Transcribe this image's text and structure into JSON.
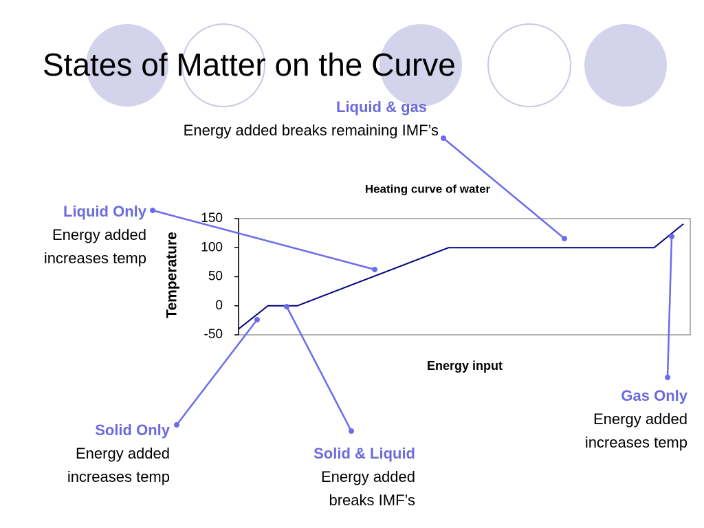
{
  "slide_title": "States of Matter on the Curve",
  "chart_data": {
    "type": "line",
    "title": "Heating curve of water",
    "x_label": "Energy input",
    "y_label": "Temperature",
    "x": [
      0,
      6.5,
      13,
      46.5,
      92,
      98.5
    ],
    "values": [
      -40,
      0,
      0,
      100,
      100,
      141
    ],
    "color": "#000080",
    "xlim": [
      0,
      100
    ],
    "ylim": [
      -50,
      150
    ],
    "yticks": [
      -50,
      0,
      50,
      100,
      150
    ],
    "annotations": [
      {
        "label": "Liquid & gas",
        "text": [
          "Energy added breaks remaining IMF’s"
        ]
      },
      {
        "label": "Liquid Only",
        "text": [
          "Energy added",
          "increases temp"
        ]
      },
      {
        "label": "Solid Only",
        "text": [
          "Energy added",
          "increases temp"
        ]
      },
      {
        "label": "Solid & Liquid",
        "text": [
          "Energy added",
          "breaks IMF’s"
        ]
      },
      {
        "label": "Gas Only",
        "text": [
          "Energy added",
          "increases temp"
        ]
      }
    ]
  }
}
